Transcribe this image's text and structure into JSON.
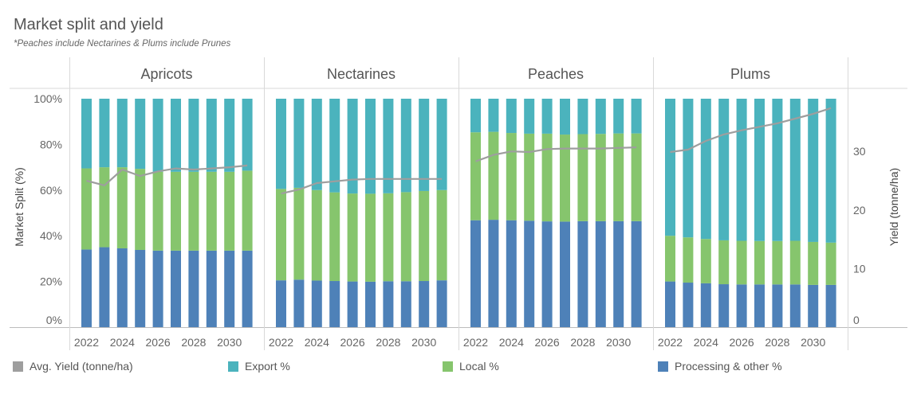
{
  "title": "Market split and yield",
  "subtitle": "*Peaches include Nectarines & Plums include Prunes",
  "colors": {
    "processing": "#4e81b8",
    "local": "#86c56d",
    "export": "#4bb3bd",
    "yield": "#9e9e9e"
  },
  "chart_data": {
    "type": "bar",
    "stacked": true,
    "categories": [
      2022,
      2023,
      2024,
      2025,
      2026,
      2027,
      2028,
      2029,
      2030,
      2031
    ],
    "x_tick_labels": [
      "2022",
      "2024",
      "2026",
      "2028",
      "2030"
    ],
    "ylabel": "Market Split (%)",
    "y2label": "Yield (tonne/ha)",
    "ylim": [
      0,
      100
    ],
    "y_tick_labels": [
      "0%",
      "20%",
      "40%",
      "60%",
      "80%",
      "100%"
    ],
    "y2lim": [
      0,
      39
    ],
    "y2_ticks": [
      0,
      10,
      20,
      30
    ],
    "legend": [
      {
        "key": "yield",
        "label": "Avg. Yield (tonne/ha)"
      },
      {
        "key": "export",
        "label": "Export %"
      },
      {
        "key": "local",
        "label": "Local %"
      },
      {
        "key": "processing",
        "label": "Processing & other %"
      }
    ],
    "panels": [
      {
        "name": "Apricots",
        "processing": [
          34,
          35,
          34.5,
          33.8,
          33.5,
          33.5,
          33.5,
          33.5,
          33.5,
          33.5
        ],
        "local": [
          35.5,
          35,
          35.5,
          35.5,
          34.5,
          34.5,
          34.5,
          34.5,
          34.5,
          35
        ],
        "export": [
          30.5,
          30,
          30,
          30.7,
          32,
          32,
          32,
          32,
          32,
          31.5
        ],
        "yield": [
          25,
          24.2,
          26.9,
          25.8,
          26.6,
          27.1,
          26.9,
          27.1,
          27.3,
          27.6
        ]
      },
      {
        "name": "Nectarines",
        "processing": [
          20.5,
          20.8,
          20.4,
          20.2,
          20,
          19.9,
          20.1,
          20.1,
          20.2,
          20.5
        ],
        "local": [
          40,
          40.2,
          39.6,
          38.8,
          38.5,
          38.5,
          38.5,
          39,
          39.4,
          39.5
        ],
        "export": [
          39.5,
          39,
          40,
          41,
          41.5,
          41.6,
          41.4,
          40.9,
          40.4,
          40
        ],
        "yield": [
          22.8,
          23.5,
          24.6,
          24.9,
          25.2,
          25.3,
          25.3,
          25.3,
          25.3,
          25.3
        ]
      },
      {
        "name": "Peaches",
        "processing": [
          46.8,
          47,
          46.8,
          46.6,
          46.3,
          46.2,
          46.4,
          46.4,
          46.4,
          46.4
        ],
        "local": [
          38.5,
          38.5,
          38.2,
          38.1,
          38.4,
          38.1,
          38.1,
          38.2,
          38.4,
          38.4
        ],
        "export": [
          14.7,
          14.5,
          15,
          15.3,
          15.3,
          15.7,
          15.5,
          15.4,
          15.2,
          15.2
        ],
        "yield": [
          28.3,
          29.4,
          30,
          29.9,
          30.4,
          30.5,
          30.5,
          30.5,
          30.6,
          30.7
        ]
      },
      {
        "name": "Plums",
        "processing": [
          20,
          19.5,
          19.2,
          18.8,
          18.7,
          18.7,
          18.7,
          18.7,
          18.5,
          18.5
        ],
        "local": [
          20,
          19.8,
          19.4,
          19.2,
          19.1,
          19,
          19,
          19.1,
          18.8,
          18.5
        ],
        "export": [
          60,
          60.7,
          61.4,
          62,
          62.2,
          62.3,
          62.3,
          62.2,
          62.7,
          63
        ],
        "yield": [
          29.9,
          30.3,
          31.8,
          32.9,
          33.6,
          34.2,
          34.8,
          35.6,
          36.4,
          37.4
        ]
      }
    ]
  }
}
